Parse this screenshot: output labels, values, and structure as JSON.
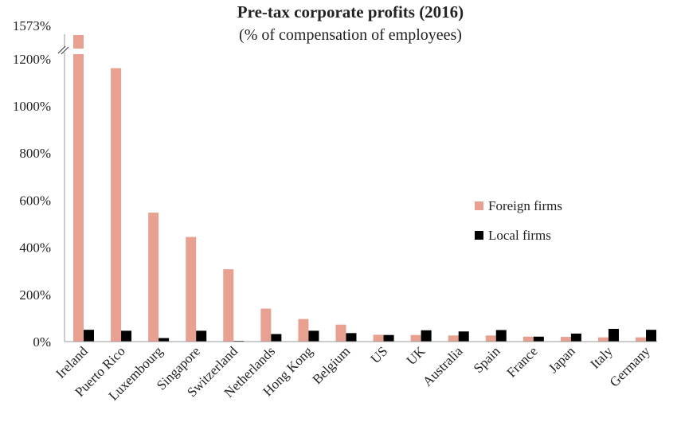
{
  "chart_data": {
    "type": "bar",
    "title": "Pre-tax corporate profits (2016)",
    "subtitle": "(% of compensation of employees)",
    "xlabel": "",
    "ylabel": "",
    "categories": [
      "Ireland",
      "Puerto Rico",
      "Luxembourg",
      "Singapore",
      "Switzerland",
      "Netherlands",
      "Hong Kong",
      "Belgium",
      "US",
      "UK",
      "Australia",
      "Spain",
      "France",
      "Japan",
      "Italy",
      "Germany"
    ],
    "series": [
      {
        "name": "Foreign firms",
        "color": "#e8a091",
        "values": [
          1573,
          1160,
          547,
          444,
          307,
          140,
          96,
          72,
          29,
          28,
          26,
          26,
          21,
          20,
          18,
          18
        ]
      },
      {
        "name": "Local firms",
        "color": "#000000",
        "values": [
          50,
          46,
          15,
          46,
          3,
          32,
          46,
          36,
          28,
          48,
          43,
          49,
          21,
          34,
          54,
          50
        ]
      }
    ],
    "ylim": [
      0,
      1573
    ],
    "y_ticks": [
      "0%",
      "200%",
      "400%",
      "600%",
      "800%",
      "1000%",
      "1200%",
      "1573%"
    ],
    "y_tick_values": [
      0,
      200,
      400,
      600,
      800,
      1000,
      1200,
      1573
    ],
    "axis_break": "between 1200% and 1573%",
    "grid": false,
    "legend_position": "right"
  }
}
